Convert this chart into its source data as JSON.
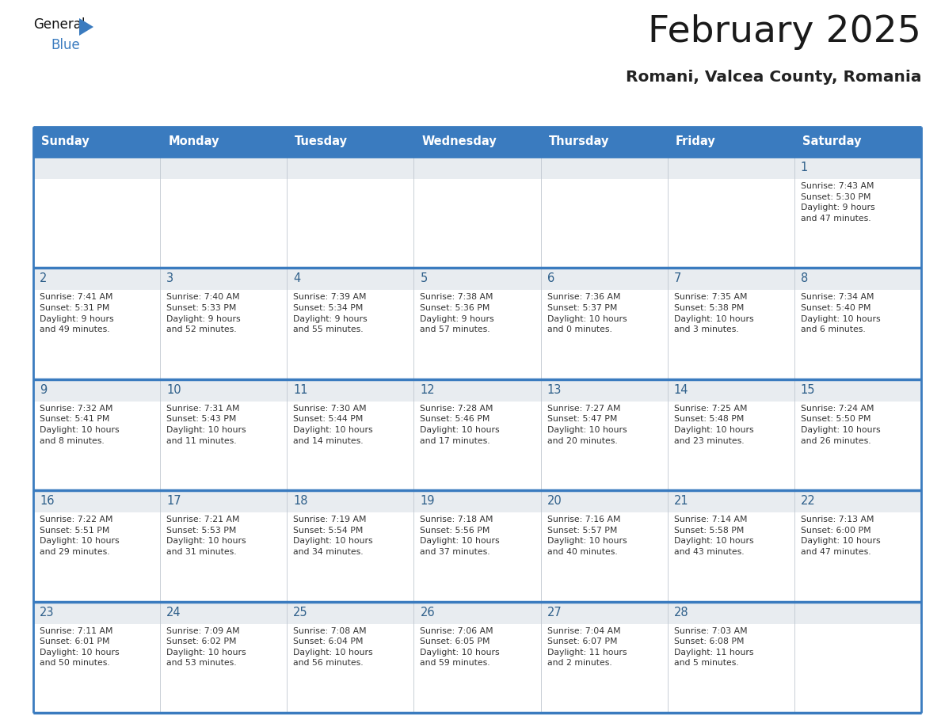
{
  "title": "February 2025",
  "subtitle": "Romani, Valcea County, Romania",
  "header_color": "#3a7bbf",
  "header_text_color": "#ffffff",
  "cell_top_bg": "#e8edf2",
  "cell_body_bg": "#ffffff",
  "day_number_color": "#2e5f8a",
  "text_color": "#333333",
  "border_color": "#3a7bbf",
  "row_divider_color": "#3a7bbf",
  "days_of_week": [
    "Sunday",
    "Monday",
    "Tuesday",
    "Wednesday",
    "Thursday",
    "Friday",
    "Saturday"
  ],
  "calendar_data": [
    [
      {
        "day": "",
        "info": ""
      },
      {
        "day": "",
        "info": ""
      },
      {
        "day": "",
        "info": ""
      },
      {
        "day": "",
        "info": ""
      },
      {
        "day": "",
        "info": ""
      },
      {
        "day": "",
        "info": ""
      },
      {
        "day": "1",
        "info": "Sunrise: 7:43 AM\nSunset: 5:30 PM\nDaylight: 9 hours\nand 47 minutes."
      }
    ],
    [
      {
        "day": "2",
        "info": "Sunrise: 7:41 AM\nSunset: 5:31 PM\nDaylight: 9 hours\nand 49 minutes."
      },
      {
        "day": "3",
        "info": "Sunrise: 7:40 AM\nSunset: 5:33 PM\nDaylight: 9 hours\nand 52 minutes."
      },
      {
        "day": "4",
        "info": "Sunrise: 7:39 AM\nSunset: 5:34 PM\nDaylight: 9 hours\nand 55 minutes."
      },
      {
        "day": "5",
        "info": "Sunrise: 7:38 AM\nSunset: 5:36 PM\nDaylight: 9 hours\nand 57 minutes."
      },
      {
        "day": "6",
        "info": "Sunrise: 7:36 AM\nSunset: 5:37 PM\nDaylight: 10 hours\nand 0 minutes."
      },
      {
        "day": "7",
        "info": "Sunrise: 7:35 AM\nSunset: 5:38 PM\nDaylight: 10 hours\nand 3 minutes."
      },
      {
        "day": "8",
        "info": "Sunrise: 7:34 AM\nSunset: 5:40 PM\nDaylight: 10 hours\nand 6 minutes."
      }
    ],
    [
      {
        "day": "9",
        "info": "Sunrise: 7:32 AM\nSunset: 5:41 PM\nDaylight: 10 hours\nand 8 minutes."
      },
      {
        "day": "10",
        "info": "Sunrise: 7:31 AM\nSunset: 5:43 PM\nDaylight: 10 hours\nand 11 minutes."
      },
      {
        "day": "11",
        "info": "Sunrise: 7:30 AM\nSunset: 5:44 PM\nDaylight: 10 hours\nand 14 minutes."
      },
      {
        "day": "12",
        "info": "Sunrise: 7:28 AM\nSunset: 5:46 PM\nDaylight: 10 hours\nand 17 minutes."
      },
      {
        "day": "13",
        "info": "Sunrise: 7:27 AM\nSunset: 5:47 PM\nDaylight: 10 hours\nand 20 minutes."
      },
      {
        "day": "14",
        "info": "Sunrise: 7:25 AM\nSunset: 5:48 PM\nDaylight: 10 hours\nand 23 minutes."
      },
      {
        "day": "15",
        "info": "Sunrise: 7:24 AM\nSunset: 5:50 PM\nDaylight: 10 hours\nand 26 minutes."
      }
    ],
    [
      {
        "day": "16",
        "info": "Sunrise: 7:22 AM\nSunset: 5:51 PM\nDaylight: 10 hours\nand 29 minutes."
      },
      {
        "day": "17",
        "info": "Sunrise: 7:21 AM\nSunset: 5:53 PM\nDaylight: 10 hours\nand 31 minutes."
      },
      {
        "day": "18",
        "info": "Sunrise: 7:19 AM\nSunset: 5:54 PM\nDaylight: 10 hours\nand 34 minutes."
      },
      {
        "day": "19",
        "info": "Sunrise: 7:18 AM\nSunset: 5:56 PM\nDaylight: 10 hours\nand 37 minutes."
      },
      {
        "day": "20",
        "info": "Sunrise: 7:16 AM\nSunset: 5:57 PM\nDaylight: 10 hours\nand 40 minutes."
      },
      {
        "day": "21",
        "info": "Sunrise: 7:14 AM\nSunset: 5:58 PM\nDaylight: 10 hours\nand 43 minutes."
      },
      {
        "day": "22",
        "info": "Sunrise: 7:13 AM\nSunset: 6:00 PM\nDaylight: 10 hours\nand 47 minutes."
      }
    ],
    [
      {
        "day": "23",
        "info": "Sunrise: 7:11 AM\nSunset: 6:01 PM\nDaylight: 10 hours\nand 50 minutes."
      },
      {
        "day": "24",
        "info": "Sunrise: 7:09 AM\nSunset: 6:02 PM\nDaylight: 10 hours\nand 53 minutes."
      },
      {
        "day": "25",
        "info": "Sunrise: 7:08 AM\nSunset: 6:04 PM\nDaylight: 10 hours\nand 56 minutes."
      },
      {
        "day": "26",
        "info": "Sunrise: 7:06 AM\nSunset: 6:05 PM\nDaylight: 10 hours\nand 59 minutes."
      },
      {
        "day": "27",
        "info": "Sunrise: 7:04 AM\nSunset: 6:07 PM\nDaylight: 11 hours\nand 2 minutes."
      },
      {
        "day": "28",
        "info": "Sunrise: 7:03 AM\nSunset: 6:08 PM\nDaylight: 11 hours\nand 5 minutes."
      },
      {
        "day": "",
        "info": ""
      }
    ]
  ]
}
